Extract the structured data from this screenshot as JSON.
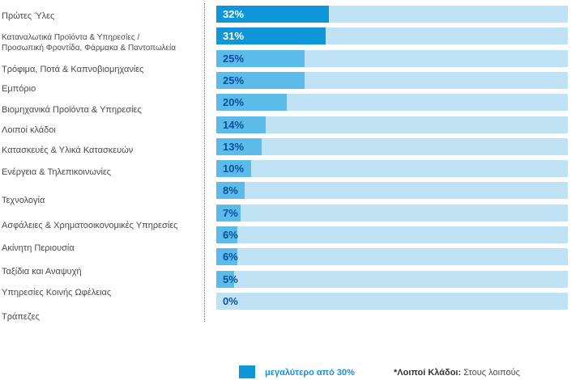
{
  "chart_data": {
    "type": "bar",
    "orientation": "horizontal",
    "title": "",
    "xlabel": "",
    "ylabel": "",
    "xlim": [
      0,
      100
    ],
    "unit": "%",
    "categories": [
      "Πρώτες Ύλες",
      "Καταναλωτικά Προϊόντα & Υπηρεσίες / Προσωπική Φροντίδα, Φάρμακα & Παντοπωλεία",
      "Τρόφιμα, Ποτά & Καπνοβιομηχανίες",
      "Εμπόριο",
      "Βιομηχανικά Προϊόντα & Υπηρεσίες",
      "Λοιποί κλάδοι",
      "Κατασκευές & Υλικά Κατασκευών",
      "Ενέργεια & Τηλεπικοινωνίες",
      "Τεχνολογία",
      "Ασφάλειες & Χρηματοοικονομικές Υπηρεσίες",
      "Ακίνητη Περιουσία",
      "Ταξίδια και Αναψυχή",
      "Υπηρεσίες Κοινής Ωφέλειας",
      "Τράπεζες"
    ],
    "category_lines": [
      [
        "Πρώτες Ύλες"
      ],
      [
        "Καταναλωτικά Προϊόντα & Υπηρεσίες /",
        "Προσωπική Φροντίδα, Φάρμακα & Παντοπωλεία"
      ],
      [
        "Τρόφιμα, Ποτά & Καπνοβιομηχανίες"
      ],
      [
        "Εμπόριο"
      ],
      [
        "Βιομηχανικά Προϊόντα & Υπηρεσίες"
      ],
      [
        "Λοιποί κλάδοι"
      ],
      [
        "Κατασκευές & Υλικά Κατασκευών"
      ],
      [
        "Ενέργεια & Τηλεπικοινωνίες"
      ],
      [
        "Τεχνολογία"
      ],
      [
        "Ασφάλειες & Χρηματοοικονομικές Υπηρεσίες"
      ],
      [
        "Ακίνητη Περιουσία"
      ],
      [
        "Ταξίδια και Αναψυχή"
      ],
      [
        "Υπηρεσίες Κοινής Ωφέλειας"
      ],
      [
        "Τράπεζες"
      ]
    ],
    "values": [
      32,
      31,
      25,
      25,
      20,
      14,
      13,
      10,
      8,
      7,
      6,
      6,
      5,
      0
    ],
    "value_labels": [
      "32%",
      "31%",
      "25%",
      "25%",
      "20%",
      "14%",
      "13%",
      "10%",
      "8%",
      "7%",
      "6%",
      "6%",
      "5%",
      "0%"
    ],
    "highlight_threshold": 30,
    "colors": {
      "high": "#0f96d8",
      "normal": "#5cbbe8",
      "track": "#bfe3f4",
      "label_high": "#ffffff",
      "label_normal": "#0a4d9e"
    },
    "legend": {
      "entries": [
        {
          "label": "μεγαλύτερο από 30%",
          "color": "#0f96d8"
        }
      ],
      "position": "bottom"
    },
    "grid": false
  },
  "footnote": {
    "bold": "*Λοιποί Κλάδοι:",
    "text": "Στους λοιπούς"
  }
}
